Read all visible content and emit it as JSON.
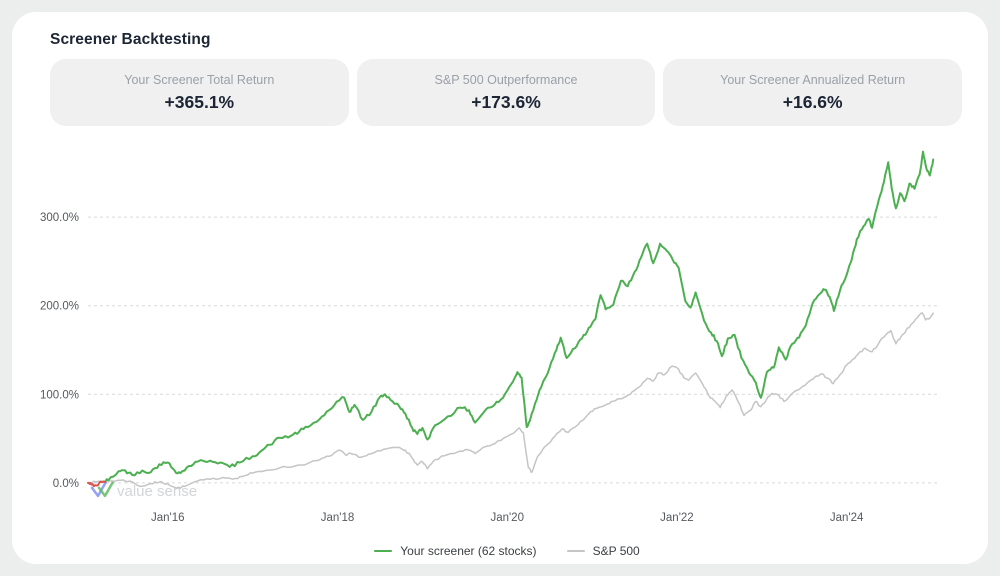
{
  "page": {
    "title": "Screener Backtesting"
  },
  "stats": [
    {
      "label": "Your Screener Total Return",
      "value": "+365.1%"
    },
    {
      "label": "S&P 500 Outperformance",
      "value": "+173.6%"
    },
    {
      "label": "Your Screener Annualized Return",
      "value": "+16.6%"
    }
  ],
  "watermark": {
    "text": "value sense",
    "text_color": "#d3d5d8",
    "logo_colors": [
      "#7c8cf0",
      "#58b85c"
    ]
  },
  "colors": {
    "panel_bg": "#ffffff",
    "outer_bg": "#eceded",
    "tile_bg": "#f0f0f1",
    "heading": "#1c2534",
    "muted": "#9aa0a8",
    "axis_text": "#55595e",
    "gridline": "#d9dadb",
    "screener_line": "#4caf50",
    "screener_negative": "#d9534f",
    "sp500_line": "#c4c5c6"
  },
  "chart_data": {
    "type": "line",
    "title": "",
    "xlabel": "",
    "ylabel": "",
    "x_axis": {
      "range": [
        2015.06,
        2025.1
      ],
      "ticks": [
        2016.0,
        2018.0,
        2020.0,
        2022.0,
        2024.0
      ],
      "tick_labels": [
        "Jan'16",
        "Jan'18",
        "Jan'20",
        "Jan'22",
        "Jan'24"
      ]
    },
    "y_axis": {
      "range": [
        -25,
        395
      ],
      "ticks": [
        0,
        100,
        200,
        300
      ],
      "tick_labels": [
        "0.0%",
        "100.0%",
        "200.0%",
        "300.0%"
      ],
      "grid": "dashed"
    },
    "legend_position": "bottom-center",
    "series": [
      {
        "name": "Your screener (62 stocks)",
        "color": "#4caf50",
        "negative_start_color": "#d9534f",
        "red_until": 2015.26,
        "texture_jitter": 2.0,
        "points": [
          [
            2015.06,
            0
          ],
          [
            2015.1,
            -2
          ],
          [
            2015.16,
            -3
          ],
          [
            2015.22,
            1
          ],
          [
            2015.3,
            3
          ],
          [
            2015.42,
            13
          ],
          [
            2015.5,
            14
          ],
          [
            2015.58,
            9
          ],
          [
            2015.7,
            14
          ],
          [
            2015.8,
            12
          ],
          [
            2015.9,
            21
          ],
          [
            2016.0,
            23
          ],
          [
            2016.08,
            14
          ],
          [
            2016.15,
            11
          ],
          [
            2016.25,
            19
          ],
          [
            2016.35,
            24
          ],
          [
            2016.5,
            25
          ],
          [
            2016.62,
            23
          ],
          [
            2016.73,
            18
          ],
          [
            2016.85,
            23
          ],
          [
            2017.0,
            30
          ],
          [
            2017.1,
            36
          ],
          [
            2017.2,
            43
          ],
          [
            2017.32,
            51
          ],
          [
            2017.45,
            53
          ],
          [
            2017.55,
            58
          ],
          [
            2017.65,
            63
          ],
          [
            2017.79,
            72
          ],
          [
            2017.9,
            82
          ],
          [
            2018.02,
            93
          ],
          [
            2018.08,
            96
          ],
          [
            2018.14,
            80
          ],
          [
            2018.2,
            88
          ],
          [
            2018.3,
            71
          ],
          [
            2018.4,
            80
          ],
          [
            2018.5,
            97
          ],
          [
            2018.56,
            100
          ],
          [
            2018.65,
            92
          ],
          [
            2018.73,
            86
          ],
          [
            2018.8,
            78
          ],
          [
            2018.88,
            62
          ],
          [
            2018.94,
            55
          ],
          [
            2019.0,
            62
          ],
          [
            2019.06,
            49
          ],
          [
            2019.15,
            65
          ],
          [
            2019.3,
            75
          ],
          [
            2019.45,
            85
          ],
          [
            2019.55,
            82
          ],
          [
            2019.62,
            68
          ],
          [
            2019.75,
            83
          ],
          [
            2019.85,
            88
          ],
          [
            2019.95,
            96
          ],
          [
            2020.05,
            112
          ],
          [
            2020.12,
            125
          ],
          [
            2020.17,
            119
          ],
          [
            2020.23,
            63
          ],
          [
            2020.28,
            75
          ],
          [
            2020.33,
            90
          ],
          [
            2020.4,
            108
          ],
          [
            2020.5,
            130
          ],
          [
            2020.58,
            150
          ],
          [
            2020.63,
            164
          ],
          [
            2020.7,
            141
          ],
          [
            2020.8,
            152
          ],
          [
            2020.88,
            163
          ],
          [
            2020.96,
            175
          ],
          [
            2021.04,
            185
          ],
          [
            2021.1,
            212
          ],
          [
            2021.16,
            196
          ],
          [
            2021.25,
            201
          ],
          [
            2021.34,
            228
          ],
          [
            2021.42,
            222
          ],
          [
            2021.5,
            238
          ],
          [
            2021.58,
            255
          ],
          [
            2021.65,
            270
          ],
          [
            2021.72,
            248
          ],
          [
            2021.8,
            270
          ],
          [
            2021.88,
            262
          ],
          [
            2021.95,
            252
          ],
          [
            2022.02,
            243
          ],
          [
            2022.1,
            205
          ],
          [
            2022.16,
            198
          ],
          [
            2022.22,
            215
          ],
          [
            2022.32,
            183
          ],
          [
            2022.4,
            170
          ],
          [
            2022.47,
            160
          ],
          [
            2022.53,
            143
          ],
          [
            2022.6,
            163
          ],
          [
            2022.68,
            167
          ],
          [
            2022.76,
            141
          ],
          [
            2022.85,
            124
          ],
          [
            2022.93,
            113
          ],
          [
            2022.99,
            96
          ],
          [
            2023.06,
            125
          ],
          [
            2023.14,
            130
          ],
          [
            2023.2,
            153
          ],
          [
            2023.28,
            139
          ],
          [
            2023.36,
            157
          ],
          [
            2023.44,
            164
          ],
          [
            2023.52,
            178
          ],
          [
            2023.6,
            203
          ],
          [
            2023.68,
            213
          ],
          [
            2023.74,
            218
          ],
          [
            2023.8,
            210
          ],
          [
            2023.85,
            194
          ],
          [
            2023.92,
            217
          ],
          [
            2024.0,
            235
          ],
          [
            2024.06,
            252
          ],
          [
            2024.12,
            275
          ],
          [
            2024.2,
            290
          ],
          [
            2024.26,
            298
          ],
          [
            2024.3,
            288
          ],
          [
            2024.38,
            320
          ],
          [
            2024.44,
            340
          ],
          [
            2024.49,
            362
          ],
          [
            2024.53,
            333
          ],
          [
            2024.58,
            310
          ],
          [
            2024.63,
            327
          ],
          [
            2024.68,
            318
          ],
          [
            2024.74,
            338
          ],
          [
            2024.8,
            332
          ],
          [
            2024.86,
            348
          ],
          [
            2024.9,
            374
          ],
          [
            2024.94,
            355
          ],
          [
            2024.98,
            347
          ],
          [
            2025.02,
            365.1
          ]
        ]
      },
      {
        "name": "S&P 500",
        "color": "#c4c5c6",
        "texture_jitter": 1.2,
        "points": [
          [
            2015.06,
            0
          ],
          [
            2015.15,
            1
          ],
          [
            2015.3,
            2
          ],
          [
            2015.45,
            3
          ],
          [
            2015.55,
            2
          ],
          [
            2015.68,
            -4
          ],
          [
            2015.8,
            -1
          ],
          [
            2015.9,
            1
          ],
          [
            2016.0,
            -1
          ],
          [
            2016.1,
            -6
          ],
          [
            2016.2,
            -4
          ],
          [
            2016.35,
            2
          ],
          [
            2016.5,
            4
          ],
          [
            2016.65,
            6
          ],
          [
            2016.8,
            5
          ],
          [
            2016.9,
            8
          ],
          [
            2017.0,
            11
          ],
          [
            2017.15,
            14
          ],
          [
            2017.32,
            17
          ],
          [
            2017.5,
            19
          ],
          [
            2017.65,
            22
          ],
          [
            2017.79,
            26
          ],
          [
            2017.9,
            30
          ],
          [
            2018.02,
            37
          ],
          [
            2018.1,
            31
          ],
          [
            2018.16,
            33
          ],
          [
            2018.28,
            29
          ],
          [
            2018.4,
            33
          ],
          [
            2018.5,
            36
          ],
          [
            2018.6,
            39
          ],
          [
            2018.73,
            40
          ],
          [
            2018.8,
            37
          ],
          [
            2018.88,
            28
          ],
          [
            2018.94,
            20
          ],
          [
            2019.0,
            24
          ],
          [
            2019.06,
            16
          ],
          [
            2019.15,
            26
          ],
          [
            2019.3,
            32
          ],
          [
            2019.45,
            36
          ],
          [
            2019.55,
            37
          ],
          [
            2019.62,
            33
          ],
          [
            2019.75,
            41
          ],
          [
            2019.85,
            44
          ],
          [
            2019.95,
            50
          ],
          [
            2020.05,
            55
          ],
          [
            2020.14,
            62
          ],
          [
            2020.19,
            57
          ],
          [
            2020.25,
            17
          ],
          [
            2020.29,
            12
          ],
          [
            2020.35,
            28
          ],
          [
            2020.42,
            38
          ],
          [
            2020.5,
            45
          ],
          [
            2020.58,
            55
          ],
          [
            2020.65,
            61
          ],
          [
            2020.72,
            57
          ],
          [
            2020.8,
            63
          ],
          [
            2020.88,
            70
          ],
          [
            2020.96,
            78
          ],
          [
            2021.05,
            84
          ],
          [
            2021.16,
            88
          ],
          [
            2021.25,
            92
          ],
          [
            2021.35,
            95
          ],
          [
            2021.45,
            100
          ],
          [
            2021.55,
            108
          ],
          [
            2021.65,
            118
          ],
          [
            2021.72,
            115
          ],
          [
            2021.78,
            124
          ],
          [
            2021.85,
            122
          ],
          [
            2021.93,
            131
          ],
          [
            2022.0,
            130
          ],
          [
            2022.08,
            119
          ],
          [
            2022.14,
            116
          ],
          [
            2022.22,
            124
          ],
          [
            2022.3,
            112
          ],
          [
            2022.38,
            98
          ],
          [
            2022.45,
            92
          ],
          [
            2022.51,
            85
          ],
          [
            2022.58,
            98
          ],
          [
            2022.65,
            105
          ],
          [
            2022.73,
            90
          ],
          [
            2022.79,
            76
          ],
          [
            2022.87,
            82
          ],
          [
            2022.93,
            92
          ],
          [
            2022.99,
            86
          ],
          [
            2023.06,
            95
          ],
          [
            2023.12,
            101
          ],
          [
            2023.2,
            99
          ],
          [
            2023.26,
            92
          ],
          [
            2023.35,
            100
          ],
          [
            2023.47,
            108
          ],
          [
            2023.55,
            114
          ],
          [
            2023.62,
            119
          ],
          [
            2023.71,
            123
          ],
          [
            2023.78,
            118
          ],
          [
            2023.84,
            112
          ],
          [
            2023.92,
            122
          ],
          [
            2024.0,
            133
          ],
          [
            2024.08,
            140
          ],
          [
            2024.14,
            146
          ],
          [
            2024.22,
            152
          ],
          [
            2024.3,
            148
          ],
          [
            2024.38,
            158
          ],
          [
            2024.46,
            167
          ],
          [
            2024.52,
            172
          ],
          [
            2024.58,
            157
          ],
          [
            2024.64,
            165
          ],
          [
            2024.7,
            172
          ],
          [
            2024.76,
            179
          ],
          [
            2024.83,
            186
          ],
          [
            2024.89,
            192
          ],
          [
            2024.93,
            184
          ],
          [
            2024.98,
            186
          ],
          [
            2025.02,
            191.5
          ]
        ]
      }
    ]
  }
}
